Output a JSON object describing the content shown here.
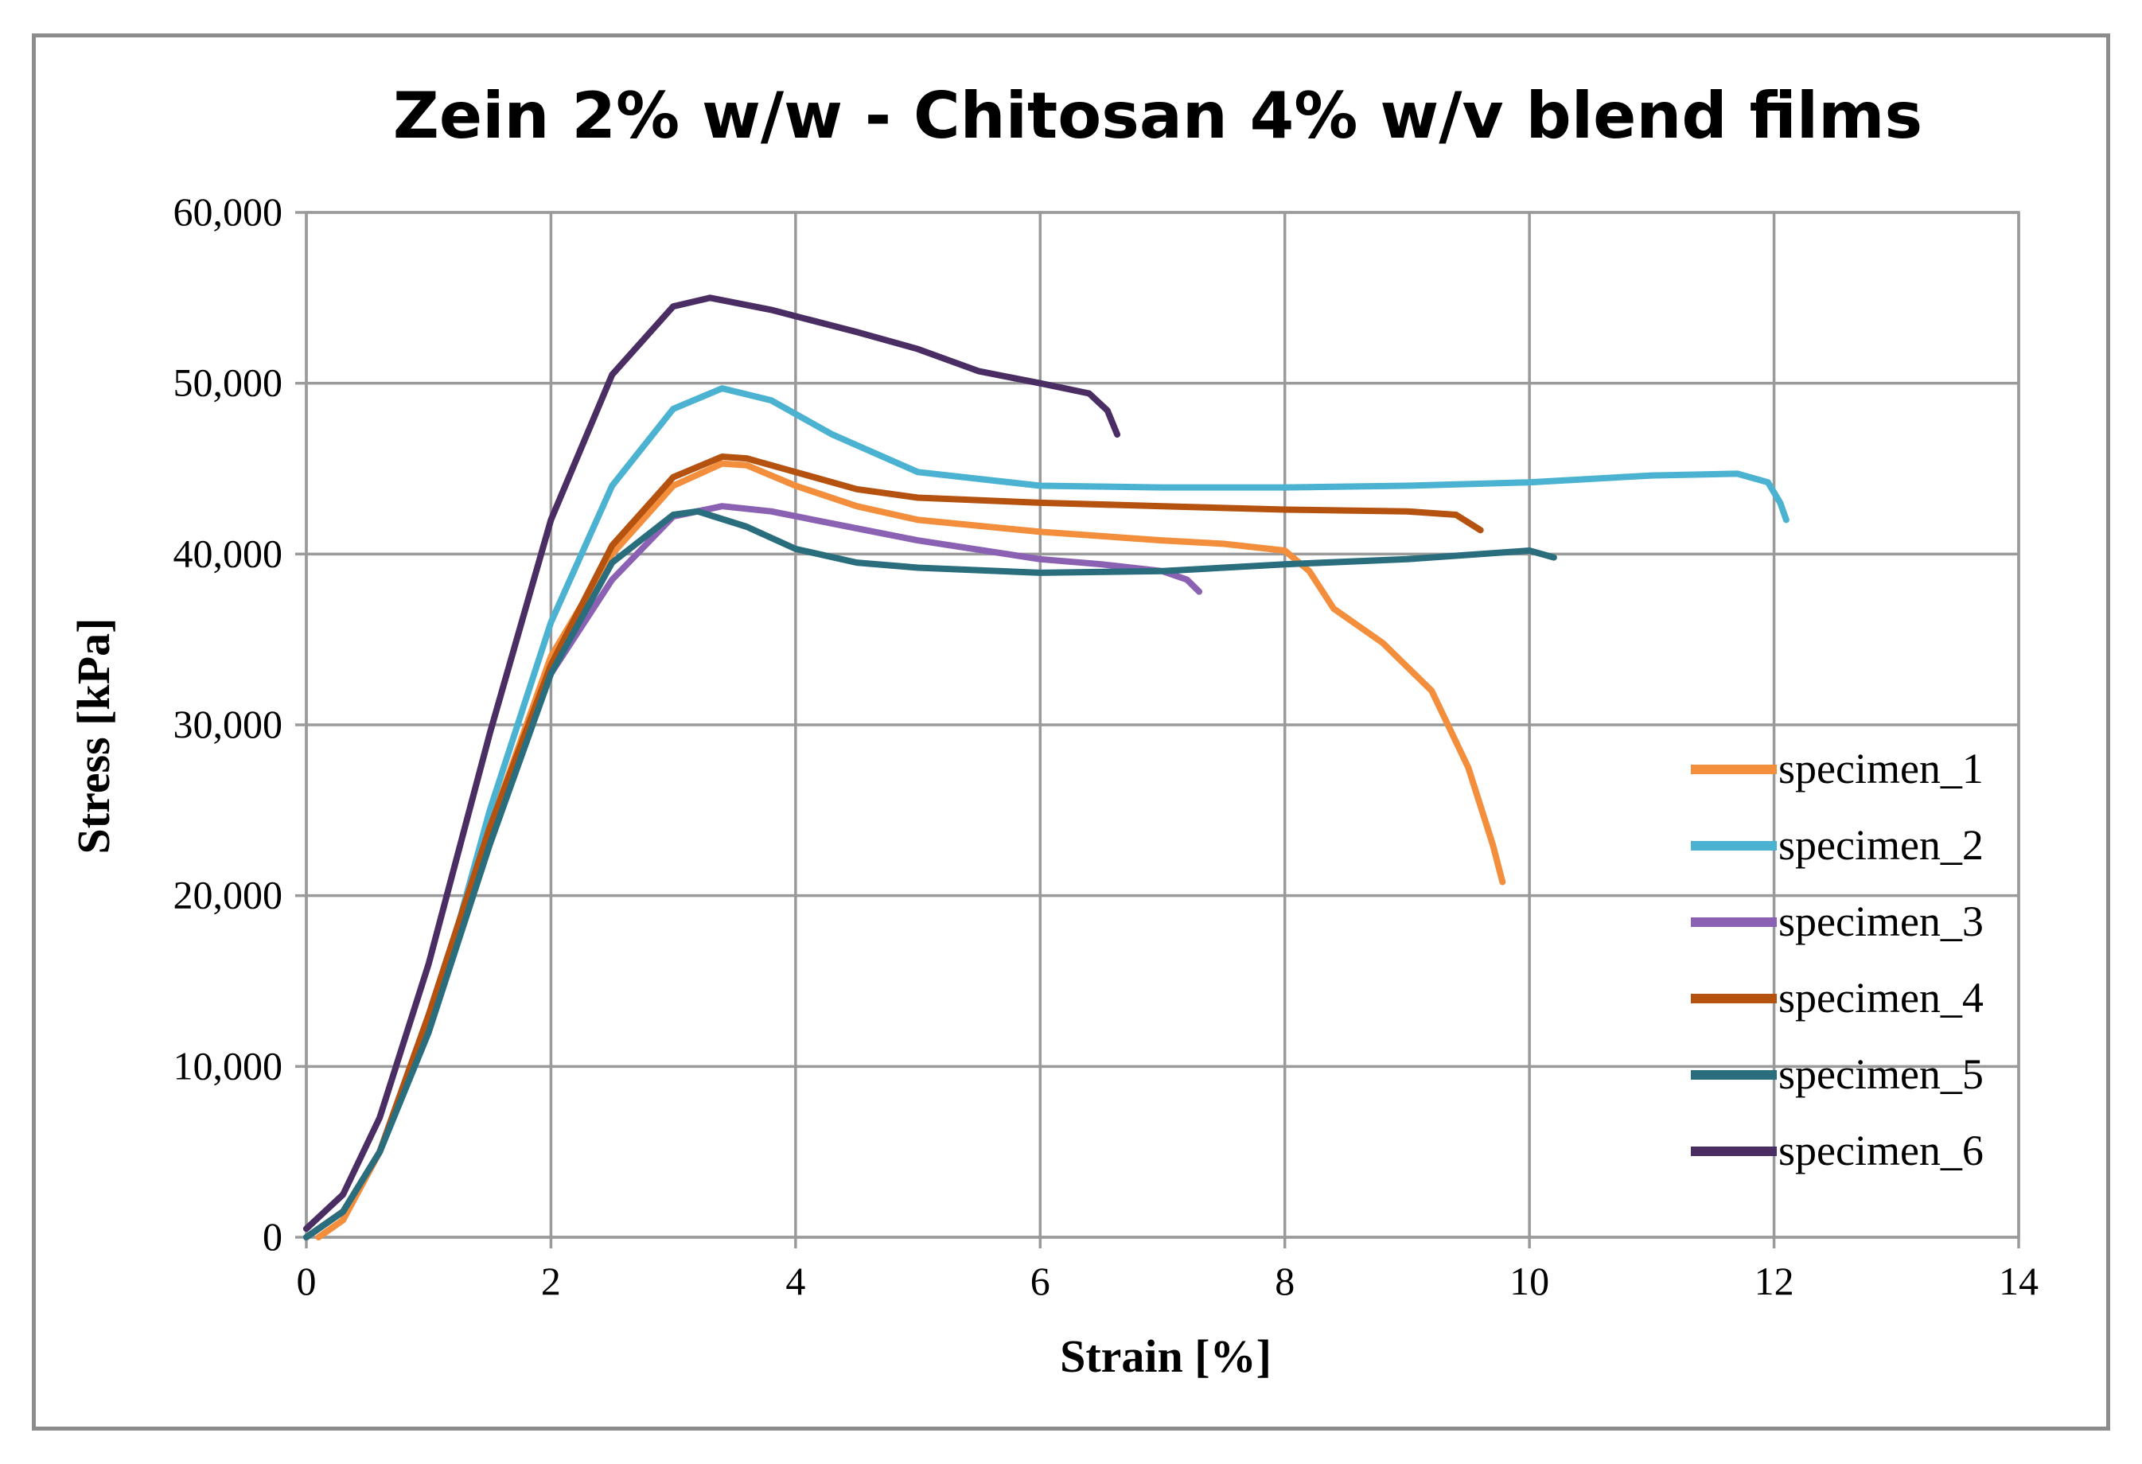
{
  "chart_data": {
    "type": "line",
    "title": "Zein 2% w/w - Chitosan 4% w/v blend films",
    "xlabel": "Strain [%]",
    "ylabel": "Stress [kPa]",
    "xlim": [
      0,
      14
    ],
    "ylim": [
      0,
      60000
    ],
    "x_ticks": [
      0,
      2,
      4,
      6,
      8,
      10,
      12,
      14
    ],
    "x_tick_labels": [
      "0",
      "2",
      "4",
      "6",
      "8",
      "10",
      "12",
      "14"
    ],
    "y_ticks": [
      0,
      10000,
      20000,
      30000,
      40000,
      50000,
      60000
    ],
    "y_tick_labels": [
      "0",
      "10,000",
      "20,000",
      "30,000",
      "40,000",
      "50,000",
      "60,000"
    ],
    "grid": true,
    "legend_position": "right",
    "series": [
      {
        "name": "specimen_1",
        "color": "#F28E3C",
        "points": [
          [
            0.1,
            0
          ],
          [
            0.3,
            1000
          ],
          [
            0.6,
            5000
          ],
          [
            1.0,
            13000
          ],
          [
            1.5,
            24000
          ],
          [
            2.0,
            34000
          ],
          [
            2.5,
            40000
          ],
          [
            3.0,
            44000
          ],
          [
            3.4,
            45300
          ],
          [
            3.6,
            45200
          ],
          [
            4.0,
            44000
          ],
          [
            4.5,
            42800
          ],
          [
            5.0,
            42000
          ],
          [
            6.0,
            41300
          ],
          [
            7.0,
            40800
          ],
          [
            7.5,
            40600
          ],
          [
            8.0,
            40200
          ],
          [
            8.2,
            39000
          ],
          [
            8.4,
            36800
          ],
          [
            8.8,
            34800
          ],
          [
            9.2,
            32000
          ],
          [
            9.5,
            27500
          ],
          [
            9.7,
            23000
          ],
          [
            9.78,
            20800
          ]
        ]
      },
      {
        "name": "specimen_2",
        "color": "#4BB3D1",
        "points": [
          [
            0,
            0
          ],
          [
            0.3,
            1500
          ],
          [
            0.6,
            5000
          ],
          [
            1.0,
            12000
          ],
          [
            1.5,
            25000
          ],
          [
            2.0,
            36000
          ],
          [
            2.5,
            44000
          ],
          [
            3.0,
            48500
          ],
          [
            3.4,
            49700
          ],
          [
            3.8,
            49000
          ],
          [
            4.3,
            47000
          ],
          [
            5.0,
            44800
          ],
          [
            6.0,
            44000
          ],
          [
            7.0,
            43900
          ],
          [
            8.0,
            43900
          ],
          [
            9.0,
            44000
          ],
          [
            10.0,
            44200
          ],
          [
            11.0,
            44600
          ],
          [
            11.7,
            44700
          ],
          [
            11.95,
            44200
          ],
          [
            12.05,
            43000
          ],
          [
            12.1,
            42000
          ]
        ]
      },
      {
        "name": "specimen_3",
        "color": "#8B62B3",
        "points": [
          [
            0,
            0
          ],
          [
            0.3,
            1500
          ],
          [
            0.6,
            5000
          ],
          [
            1.0,
            13000
          ],
          [
            1.5,
            24000
          ],
          [
            2.0,
            33000
          ],
          [
            2.5,
            38500
          ],
          [
            3.0,
            42200
          ],
          [
            3.4,
            42800
          ],
          [
            3.8,
            42500
          ],
          [
            4.5,
            41500
          ],
          [
            5.0,
            40800
          ],
          [
            6.0,
            39700
          ],
          [
            6.5,
            39400
          ],
          [
            7.0,
            39000
          ],
          [
            7.2,
            38500
          ],
          [
            7.3,
            37800
          ]
        ]
      },
      {
        "name": "specimen_4",
        "color": "#B5520F",
        "points": [
          [
            0,
            0
          ],
          [
            0.3,
            1500
          ],
          [
            0.6,
            5000
          ],
          [
            1.0,
            13000
          ],
          [
            1.5,
            24000
          ],
          [
            2.0,
            33500
          ],
          [
            2.5,
            40500
          ],
          [
            3.0,
            44500
          ],
          [
            3.4,
            45700
          ],
          [
            3.6,
            45600
          ],
          [
            4.0,
            44800
          ],
          [
            4.5,
            43800
          ],
          [
            5.0,
            43300
          ],
          [
            6.0,
            43000
          ],
          [
            7.0,
            42800
          ],
          [
            8.0,
            42600
          ],
          [
            9.0,
            42500
          ],
          [
            9.4,
            42300
          ],
          [
            9.6,
            41400
          ]
        ]
      },
      {
        "name": "specimen_5",
        "color": "#2A6E7E",
        "points": [
          [
            0,
            0
          ],
          [
            0.3,
            1500
          ],
          [
            0.6,
            5000
          ],
          [
            1.0,
            12000
          ],
          [
            1.5,
            23000
          ],
          [
            2.0,
            33000
          ],
          [
            2.5,
            39500
          ],
          [
            3.0,
            42300
          ],
          [
            3.2,
            42500
          ],
          [
            3.6,
            41600
          ],
          [
            4.0,
            40300
          ],
          [
            4.5,
            39500
          ],
          [
            5.0,
            39200
          ],
          [
            6.0,
            38900
          ],
          [
            7.0,
            39000
          ],
          [
            8.0,
            39400
          ],
          [
            9.0,
            39700
          ],
          [
            10.0,
            40200
          ],
          [
            10.2,
            39800
          ]
        ]
      },
      {
        "name": "specimen_6",
        "color": "#4A2D63",
        "points": [
          [
            0,
            500
          ],
          [
            0.3,
            2500
          ],
          [
            0.6,
            7000
          ],
          [
            1.0,
            16000
          ],
          [
            1.5,
            29500
          ],
          [
            2.0,
            42000
          ],
          [
            2.5,
            50500
          ],
          [
            3.0,
            54500
          ],
          [
            3.3,
            55000
          ],
          [
            3.8,
            54300
          ],
          [
            4.5,
            53000
          ],
          [
            5.0,
            52000
          ],
          [
            5.5,
            50700
          ],
          [
            6.0,
            50000
          ],
          [
            6.4,
            49400
          ],
          [
            6.55,
            48400
          ],
          [
            6.63,
            47000
          ]
        ]
      }
    ]
  }
}
